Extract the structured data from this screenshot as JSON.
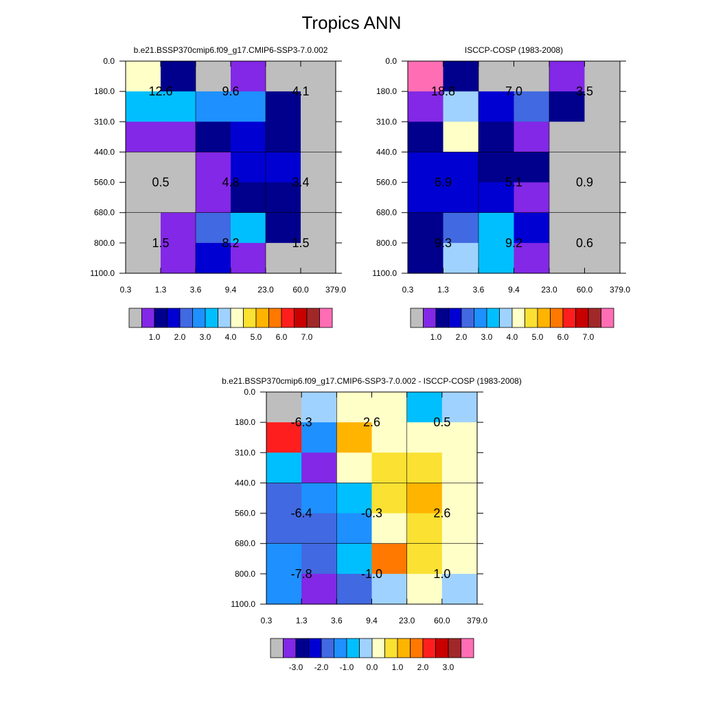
{
  "figure_title": "Tropics ANN",
  "chart_data": [
    {
      "type": "heatmap",
      "title": "b.e21.BSSP370cmip6.f09_g17.CMIP6-SSP3-7.0.002",
      "x_ticks": [
        "0.3",
        "1.3",
        "3.6",
        "9.4",
        "23.0",
        "60.0",
        "379.0"
      ],
      "y_ticks": [
        "0.0",
        "180.0",
        "310.0",
        "440.0",
        "560.0",
        "680.0",
        "800.0",
        "1100.0"
      ],
      "color_index": [
        [
          8,
          2,
          0,
          1,
          0,
          0
        ],
        [
          6,
          6,
          5,
          5,
          2,
          0
        ],
        [
          1,
          1,
          2,
          3,
          2,
          0
        ],
        [
          0,
          0,
          1,
          3,
          3,
          0
        ],
        [
          0,
          0,
          1,
          2,
          2,
          0
        ],
        [
          0,
          1,
          4,
          6,
          2,
          0
        ],
        [
          0,
          1,
          3,
          1,
          0,
          0
        ]
      ],
      "annotations": [
        {
          "text": "12.6",
          "x": "1.3",
          "y": "180.0"
        },
        {
          "text": "9.6",
          "x": "9.4",
          "y": "180.0"
        },
        {
          "text": "4.1",
          "x": "60.0",
          "y": "180.0"
        },
        {
          "text": "0.5",
          "x": "1.3",
          "y": "560.0"
        },
        {
          "text": "4.8",
          "x": "9.4",
          "y": "560.0"
        },
        {
          "text": "3.4",
          "x": "60.0",
          "y": "560.0"
        },
        {
          "text": "1.5",
          "x": "1.3",
          "y": "800.0"
        },
        {
          "text": "8.2",
          "x": "9.4",
          "y": "800.0"
        },
        {
          "text": "1.5",
          "x": "60.0",
          "y": "800.0"
        }
      ],
      "colorbar": {
        "colors": [
          "#bebebe",
          "#8228e6",
          "#00008c",
          "#0000d2",
          "#4169e1",
          "#1e90ff",
          "#00bfff",
          "#a0d2ff",
          "#ffffc8",
          "#fae132",
          "#ffb400",
          "#ff7800",
          "#ff1e1e",
          "#c80000",
          "#a02828",
          "#ff6eb4"
        ],
        "labels": [
          "1.0",
          "2.0",
          "3.0",
          "4.0",
          "5.0",
          "6.0",
          "7.0"
        ]
      }
    },
    {
      "type": "heatmap",
      "title": "ISCCP-COSP (1983-2008)",
      "x_ticks": [
        "0.3",
        "1.3",
        "3.6",
        "9.4",
        "23.0",
        "60.0",
        "379.0"
      ],
      "y_ticks": [
        "0.0",
        "180.0",
        "310.0",
        "440.0",
        "560.0",
        "680.0",
        "800.0",
        "1100.0"
      ],
      "color_index": [
        [
          15,
          2,
          0,
          0,
          1,
          0
        ],
        [
          1,
          7,
          3,
          4,
          2,
          0
        ],
        [
          2,
          8,
          2,
          1,
          0,
          0
        ],
        [
          3,
          3,
          2,
          2,
          0,
          0
        ],
        [
          3,
          3,
          3,
          1,
          0,
          0
        ],
        [
          2,
          4,
          6,
          3,
          0,
          0
        ],
        [
          2,
          7,
          6,
          1,
          0,
          0
        ]
      ],
      "annotations": [
        {
          "text": "18.8",
          "x": "1.3",
          "y": "180.0"
        },
        {
          "text": "7.0",
          "x": "9.4",
          "y": "180.0"
        },
        {
          "text": "3.5",
          "x": "60.0",
          "y": "180.0"
        },
        {
          "text": "6.9",
          "x": "1.3",
          "y": "560.0"
        },
        {
          "text": "5.1",
          "x": "9.4",
          "y": "560.0"
        },
        {
          "text": "0.9",
          "x": "60.0",
          "y": "560.0"
        },
        {
          "text": "9.3",
          "x": "1.3",
          "y": "800.0"
        },
        {
          "text": "9.2",
          "x": "9.4",
          "y": "800.0"
        },
        {
          "text": "0.6",
          "x": "60.0",
          "y": "800.0"
        }
      ],
      "colorbar": {
        "colors": [
          "#bebebe",
          "#8228e6",
          "#00008c",
          "#0000d2",
          "#4169e1",
          "#1e90ff",
          "#00bfff",
          "#a0d2ff",
          "#ffffc8",
          "#fae132",
          "#ffb400",
          "#ff7800",
          "#ff1e1e",
          "#c80000",
          "#a02828",
          "#ff6eb4"
        ],
        "labels": [
          "1.0",
          "2.0",
          "3.0",
          "4.0",
          "5.0",
          "6.0",
          "7.0"
        ]
      }
    },
    {
      "type": "heatmap",
      "title": "b.e21.BSSP370cmip6.f09_g17.CMIP6-SSP3-7.0.002 - ISCCP-COSP (1983-2008)",
      "x_ticks": [
        "0.3",
        "1.3",
        "3.6",
        "9.4",
        "23.0",
        "60.0",
        "379.0"
      ],
      "y_ticks": [
        "0.0",
        "180.0",
        "310.0",
        "440.0",
        "560.0",
        "680.0",
        "800.0",
        "1100.0"
      ],
      "color_index": [
        [
          0,
          7,
          8,
          8,
          6,
          7
        ],
        [
          12,
          5,
          10,
          8,
          8,
          8
        ],
        [
          6,
          1,
          8,
          9,
          9,
          8
        ],
        [
          4,
          5,
          6,
          9,
          10,
          8
        ],
        [
          4,
          4,
          5,
          8,
          9,
          8
        ],
        [
          5,
          4,
          6,
          11,
          9,
          8
        ],
        [
          5,
          1,
          4,
          7,
          8,
          7
        ]
      ],
      "annotations": [
        {
          "text": "-6.3",
          "x": "1.3",
          "y": "180.0"
        },
        {
          "text": "2.6",
          "x": "9.4",
          "y": "180.0"
        },
        {
          "text": "0.5",
          "x": "60.0",
          "y": "180.0"
        },
        {
          "text": "-6.4",
          "x": "1.3",
          "y": "560.0"
        },
        {
          "text": "-0.3",
          "x": "9.4",
          "y": "560.0"
        },
        {
          "text": "2.6",
          "x": "60.0",
          "y": "560.0"
        },
        {
          "text": "-7.8",
          "x": "1.3",
          "y": "800.0"
        },
        {
          "text": "-1.0",
          "x": "9.4",
          "y": "800.0"
        },
        {
          "text": "1.0",
          "x": "60.0",
          "y": "800.0"
        }
      ],
      "colorbar": {
        "colors": [
          "#bebebe",
          "#8228e6",
          "#00008c",
          "#0000d2",
          "#4169e1",
          "#1e90ff",
          "#00bfff",
          "#a0d2ff",
          "#ffffc8",
          "#fae132",
          "#ffb400",
          "#ff7800",
          "#ff1e1e",
          "#c80000",
          "#a02828",
          "#ff6eb4"
        ],
        "labels": [
          "-3.0",
          "-2.0",
          "-1.0",
          "0.0",
          "1.0",
          "2.0",
          "3.0"
        ]
      }
    }
  ]
}
